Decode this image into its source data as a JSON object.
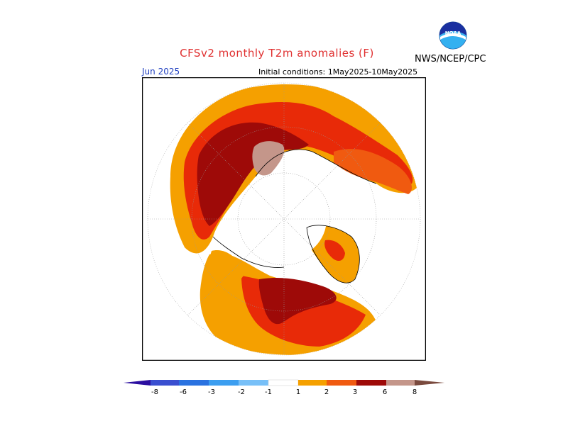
{
  "header": {
    "title": "CFSv2 monthly T2m anomalies (F)",
    "month": "Jun 2025",
    "initial_conditions": "Initial conditions: 1May2025-10May2025",
    "agency": "NWS/NCEP/CPC",
    "logo_text": "NOAA"
  },
  "colorbar": {
    "ticks": [
      "-8",
      "-6",
      "-3",
      "-2",
      "-1",
      "1",
      "2",
      "3",
      "6",
      "8"
    ],
    "colors": [
      "#2b0ea0",
      "#3a4fd0",
      "#2a72e0",
      "#3c9ef0",
      "#78c0f8",
      "#ffffff",
      "#f5a000",
      "#f05a10",
      "#e82a08",
      "#9e0a08",
      "#c4968a",
      "#7a4a3e"
    ]
  },
  "map": {
    "projection": "north-polar-stereographic",
    "land_color": "#ffffff",
    "anomaly_colors": {
      "1_to_2": "#f5a000",
      "2_to_3": "#f05a10",
      "3_to_6": "#e82a08",
      "6_to_8": "#9e0a08",
      "above_8": "#c4968a"
    }
  }
}
